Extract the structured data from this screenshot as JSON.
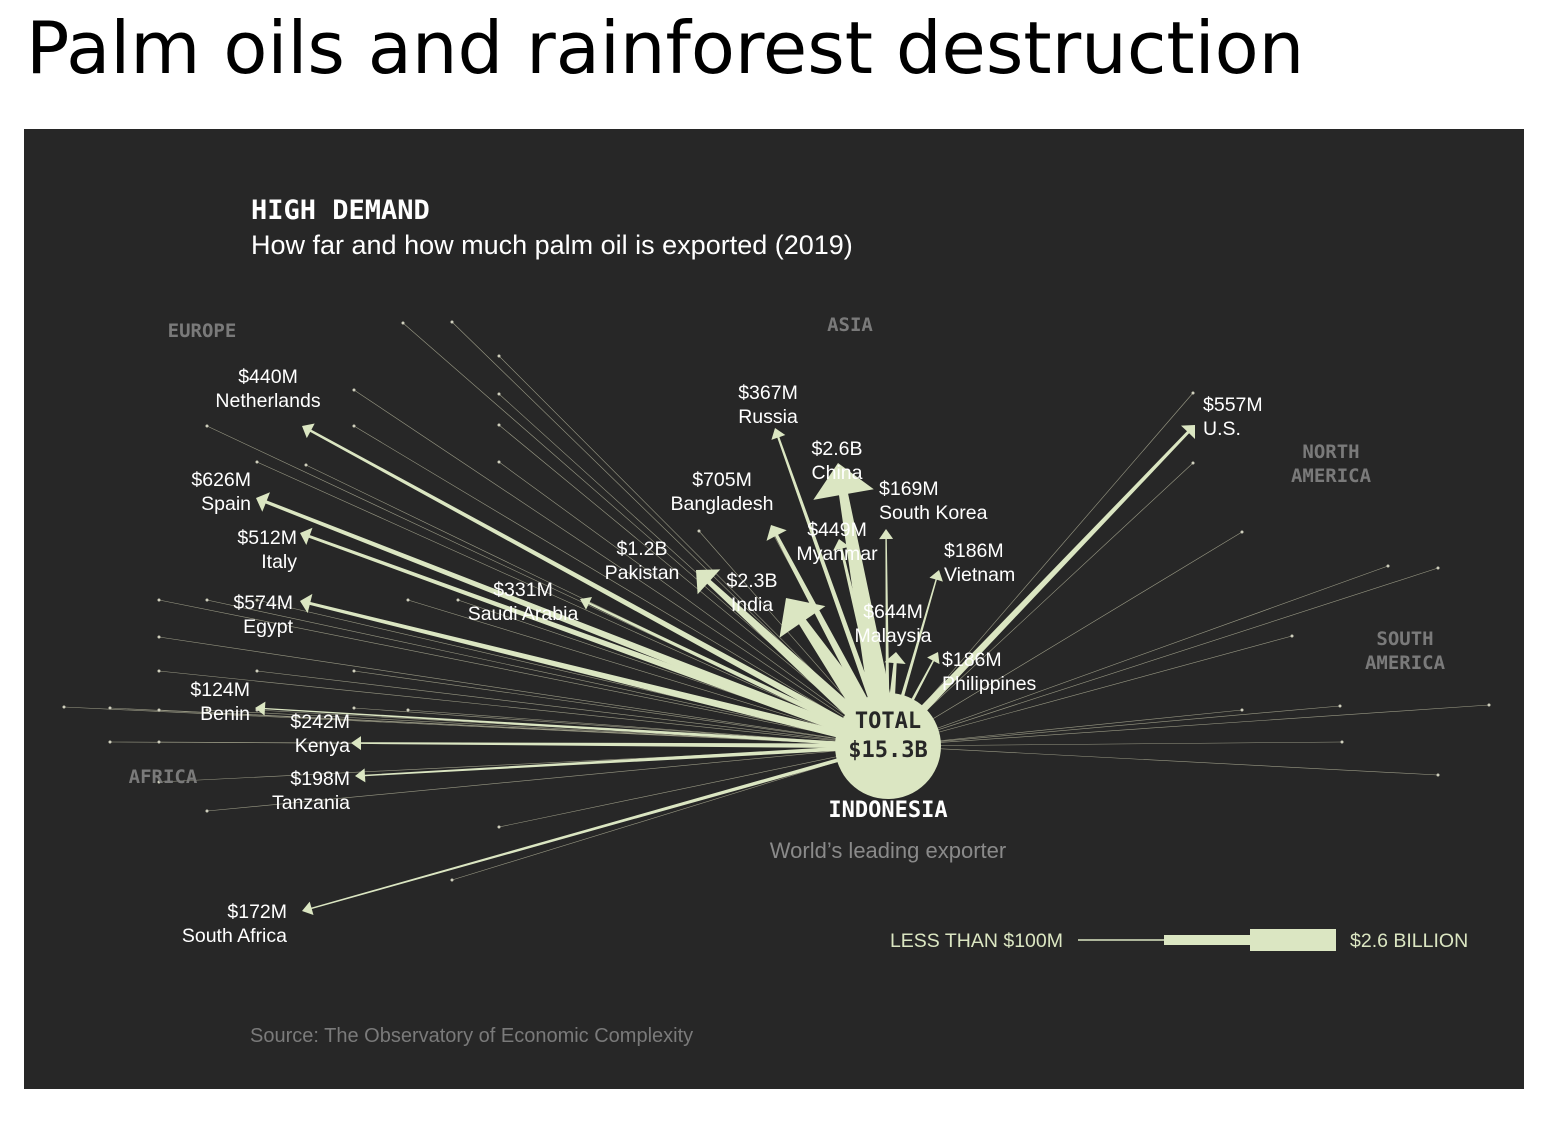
{
  "page_title": "Palm oils and rainforest destruction",
  "colors": {
    "background": "#272727",
    "accent": "#dbe6c2",
    "text": "#ffffff",
    "muted": "#7a7a7a"
  },
  "chart_data": {
    "type": "flow",
    "heading": "HIGH DEMAND",
    "subtitle": "How far and how much palm oil is exported (2019)",
    "origin": {
      "name": "INDONESIA",
      "description": "World’s leading exporter",
      "total_line1": "TOTAL",
      "total_line2": "$15.3B"
    },
    "regions": [
      {
        "line1": "EUROPE"
      },
      {
        "line1": "ASIA"
      },
      {
        "line1": "NORTH",
        "line2": "AMERICA"
      },
      {
        "line1": "SOUTH",
        "line2": "AMERICA"
      },
      {
        "line1": "AFRICA"
      }
    ],
    "flows": [
      {
        "country": "Netherlands",
        "value_label": "$440M",
        "value_musd": 440
      },
      {
        "country": "Spain",
        "value_label": "$626M",
        "value_musd": 626
      },
      {
        "country": "Italy",
        "value_label": "$512M",
        "value_musd": 512
      },
      {
        "country": "Egypt",
        "value_label": "$574M",
        "value_musd": 574
      },
      {
        "country": "Benin",
        "value_label": "$124M",
        "value_musd": 124
      },
      {
        "country": "Kenya",
        "value_label": "$242M",
        "value_musd": 242
      },
      {
        "country": "Tanzania",
        "value_label": "$198M",
        "value_musd": 198
      },
      {
        "country": "South Africa",
        "value_label": "$172M",
        "value_musd": 172
      },
      {
        "country": "Saudi Arabia",
        "value_label": "$331M",
        "value_musd": 331
      },
      {
        "country": "Pakistan",
        "value_label": "$1.2B",
        "value_musd": 1200
      },
      {
        "country": "India",
        "value_label": "$2.3B",
        "value_musd": 2300
      },
      {
        "country": "Bangladesh",
        "value_label": "$705M",
        "value_musd": 705
      },
      {
        "country": "Russia",
        "value_label": "$367M",
        "value_musd": 367
      },
      {
        "country": "China",
        "value_label": "$2.6B",
        "value_musd": 2600
      },
      {
        "country": "Myanmar",
        "value_label": "$449M",
        "value_musd": 449
      },
      {
        "country": "South Korea",
        "value_label": "$169M",
        "value_musd": 169
      },
      {
        "country": "Vietnam",
        "value_label": "$186M",
        "value_musd": 186
      },
      {
        "country": "Malaysia",
        "value_label": "$644M",
        "value_musd": 644
      },
      {
        "country": "Philippines",
        "value_label": "$186M",
        "value_musd": 186
      },
      {
        "country": "U.S.",
        "value_label": "$557M",
        "value_musd": 557
      }
    ],
    "minor_flows": "less than $100M each (unlabeled)",
    "legend": {
      "min_label": "LESS THAN $100M",
      "max_label": "$2.6 BILLION"
    },
    "source": "Source: The Observatory of Economic Complexity"
  }
}
